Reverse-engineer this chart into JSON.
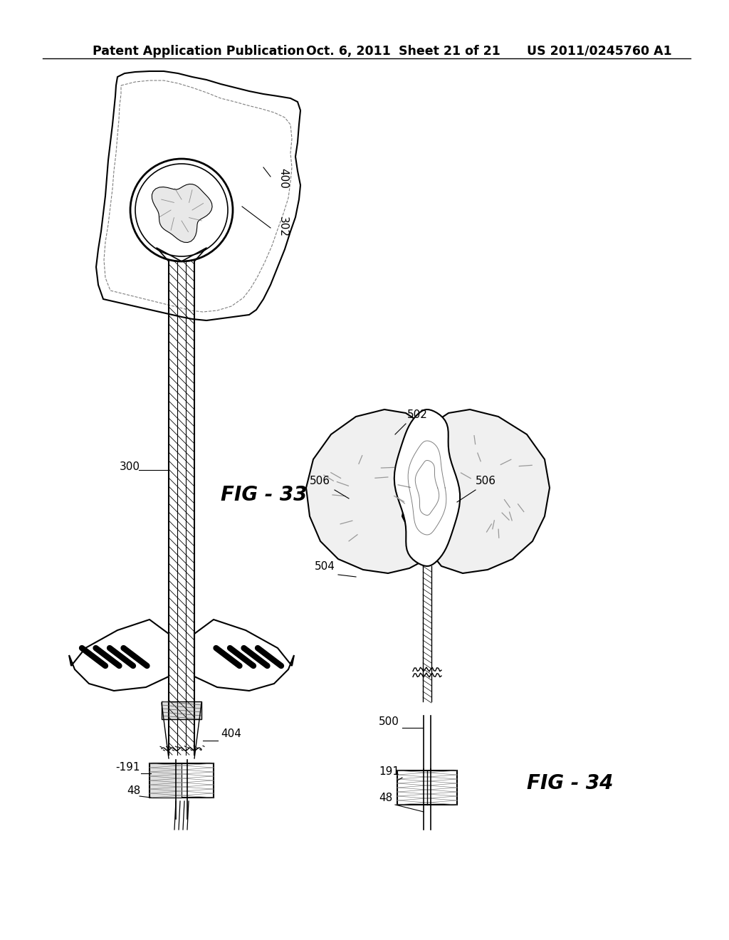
{
  "header_left": "Patent Application Publication",
  "header_middle": "Oct. 6, 2011   Sheet 21 of 21",
  "header_right": "US 2011/0245760 A1",
  "fig33_label": "FIG - 33",
  "fig34_label": "FIG - 34",
  "background_color": "#ffffff",
  "text_color": "#000000",
  "header_fontsize": 12.5,
  "figlabel_fontsize": 20
}
